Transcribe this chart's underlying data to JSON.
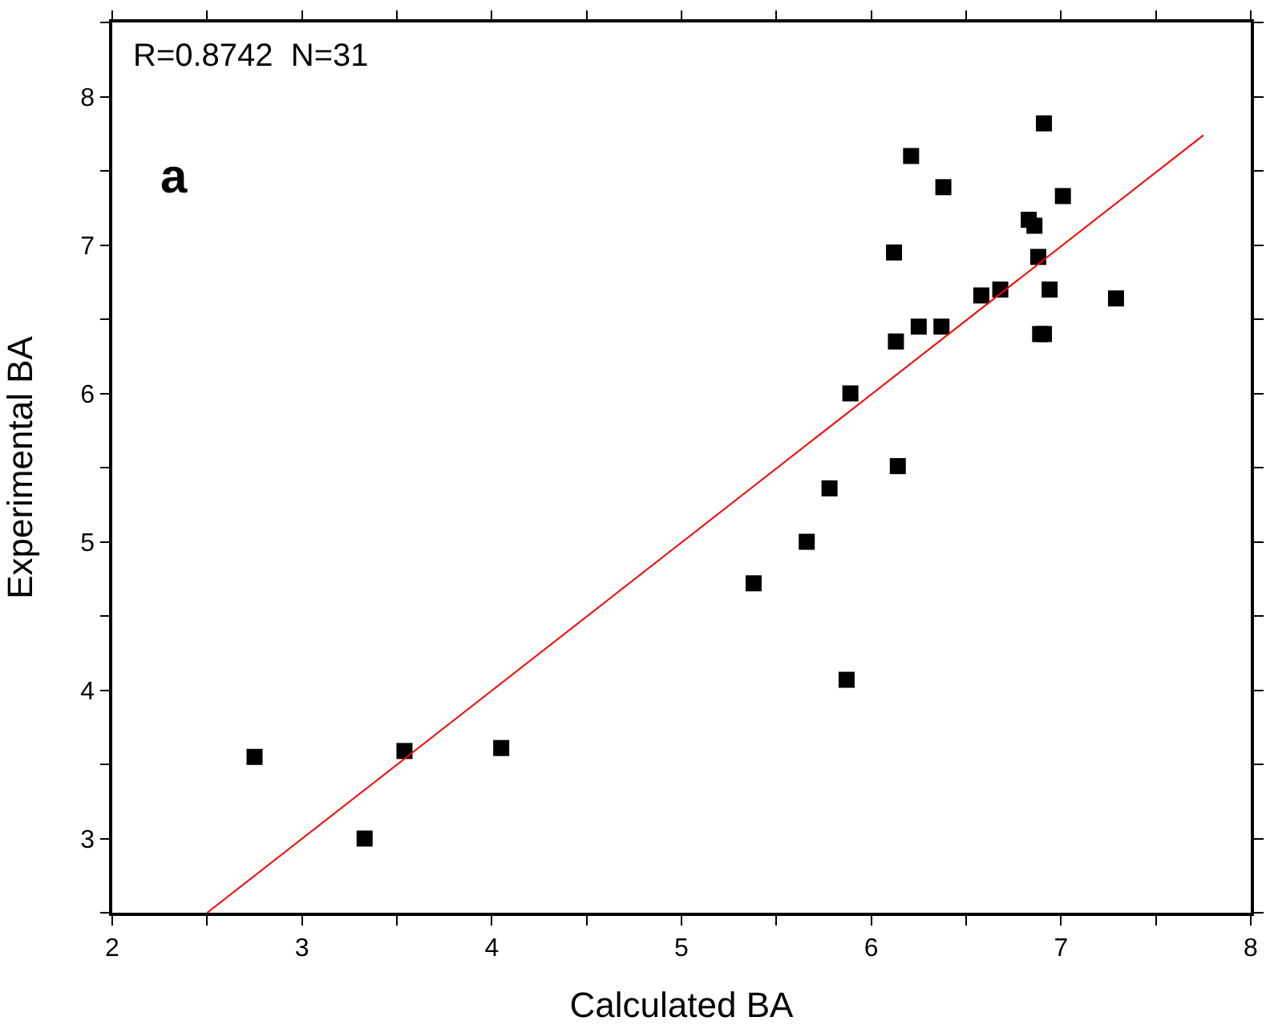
{
  "chart_data": {
    "type": "scatter",
    "xlabel": "Calculated BA",
    "ylabel": "Experimental BA",
    "annotations": [
      "R=0.8742  N=31",
      "a"
    ],
    "xlim": [
      2,
      8
    ],
    "ylim": [
      2.5,
      8.5
    ],
    "xticks": [
      2,
      {
        "value": 2.5,
        "label": null
      },
      3,
      {
        "value": 3.5,
        "label": null
      },
      4,
      {
        "value": 4.5,
        "label": null
      },
      5,
      {
        "value": 5.5,
        "label": null
      },
      6,
      {
        "value": 6.5,
        "label": null
      },
      7,
      {
        "value": 7.5,
        "label": null
      },
      8
    ],
    "yticks": [
      {
        "value": 2.5,
        "label": null
      },
      3,
      {
        "value": 3.5,
        "label": null
      },
      4,
      {
        "value": 4.5,
        "label": null
      },
      5,
      {
        "value": 5.5,
        "label": null
      },
      6,
      {
        "value": 6.5,
        "label": null
      },
      7,
      {
        "value": 7.5,
        "label": null
      },
      8,
      {
        "value": 8.5,
        "label": null
      }
    ],
    "grid": false,
    "series": [
      {
        "color": "#000000",
        "marker": "square",
        "x": [
          2.75,
          3.33,
          3.54,
          4.05,
          5.38,
          5.66,
          5.78,
          5.87,
          5.89,
          6.12,
          6.13,
          6.14,
          6.21,
          6.25,
          6.37,
          6.38,
          6.58,
          6.68,
          6.83,
          6.86,
          6.88,
          6.89,
          6.91,
          6.91,
          6.94,
          7.01,
          7.29
        ],
        "values": [
          3.55,
          3.0,
          3.59,
          3.61,
          4.72,
          5.0,
          5.36,
          4.07,
          6.0,
          6.95,
          6.35,
          5.51,
          7.6,
          6.45,
          6.45,
          7.39,
          6.66,
          6.7,
          7.17,
          7.13,
          6.92,
          6.4,
          6.4,
          7.82,
          6.7,
          7.33,
          6.64
        ]
      },
      {
        "type": "line",
        "color": "#ff0000",
        "marker": "none",
        "line_style": "solid",
        "x": [
          2.5,
          7.75
        ],
        "values": [
          2.5,
          7.74
        ]
      }
    ]
  }
}
